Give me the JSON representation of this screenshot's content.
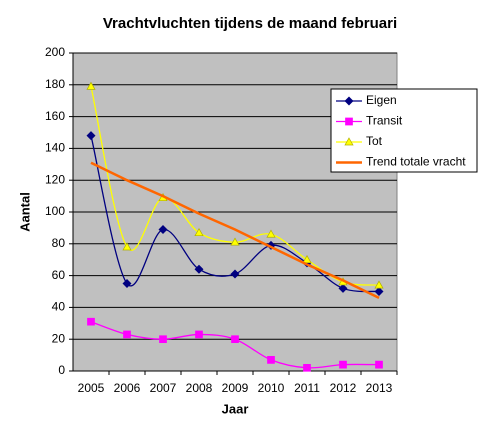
{
  "chart_data": {
    "type": "line",
    "title": "Vrachtvluchten tijdens de maand februari",
    "x_label": "Jaar",
    "y_label": "Aantal",
    "categories": [
      "2005",
      "2006",
      "2007",
      "2008",
      "2009",
      "2010",
      "2011",
      "2012",
      "2013"
    ],
    "ylim": [
      0,
      200
    ],
    "yticks": [
      0,
      20,
      40,
      60,
      80,
      100,
      120,
      140,
      160,
      180,
      200
    ],
    "grid": true,
    "series": [
      {
        "name": "Eigen",
        "color": "#000080",
        "marker": "diamond",
        "smooth": true,
        "values": [
          148,
          55,
          89,
          64,
          61,
          79,
          68,
          52,
          50
        ]
      },
      {
        "name": "Transit",
        "color": "#ff00ff",
        "marker": "square",
        "smooth": true,
        "values": [
          31,
          23,
          20,
          23,
          20,
          7,
          2,
          4,
          4
        ]
      },
      {
        "name": "Tot",
        "color": "#ffff00",
        "marker": "triangle",
        "smooth": true,
        "values": [
          179,
          78,
          109,
          87,
          81,
          86,
          70,
          56,
          54
        ]
      },
      {
        "name": "Trend totale vracht",
        "color": "#ff6600",
        "smooth": false,
        "values": [
          131,
          120,
          110,
          99,
          89,
          78,
          67,
          57,
          46
        ]
      }
    ]
  }
}
